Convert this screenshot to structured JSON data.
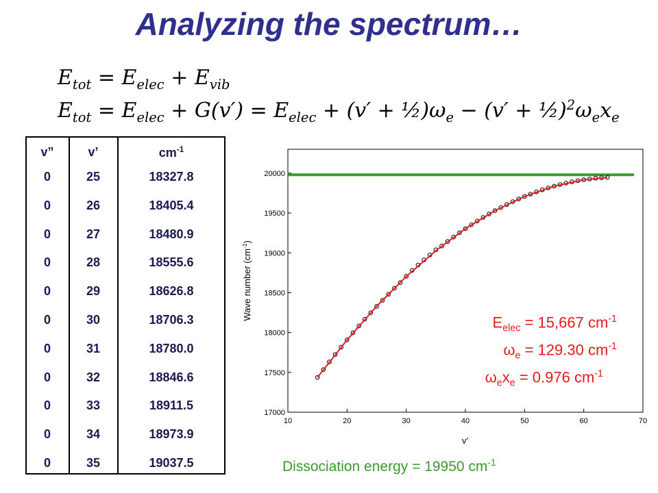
{
  "title": "Analyzing the spectrum…",
  "equations": [
    [
      "E",
      {
        "sub": "tot"
      },
      " = E",
      {
        "sub": "elec"
      },
      " + E",
      {
        "sub": "vib"
      }
    ],
    [
      "E",
      {
        "sub": "tot"
      },
      " = E",
      {
        "sub": "elec"
      },
      " + G(v′) = E",
      {
        "sub": "elec"
      },
      " + (v′ + ½)ω",
      {
        "sub": "e"
      },
      " − (v′ + ½)",
      {
        "sup": "2"
      },
      "ω",
      {
        "sub": "e"
      },
      "x",
      {
        "sub": "e"
      }
    ]
  ],
  "table": {
    "headers": [
      [
        "v”"
      ],
      [
        "v’"
      ],
      [
        "cm",
        {
          "sup": "-1"
        }
      ]
    ],
    "rows": [
      [
        0,
        25,
        "18327.8"
      ],
      [
        0,
        26,
        "18405.4"
      ],
      [
        0,
        27,
        "18480.9"
      ],
      [
        0,
        28,
        "18555.6"
      ],
      [
        0,
        29,
        "18626.8"
      ],
      [
        0,
        30,
        "18706.3"
      ],
      [
        0,
        31,
        "18780.0"
      ],
      [
        0,
        32,
        "18846.6"
      ],
      [
        0,
        33,
        "18911.5"
      ],
      [
        0,
        34,
        "18973.9"
      ],
      [
        0,
        35,
        "19037.5"
      ]
    ]
  },
  "chart_data": {
    "type": "scatter",
    "x_label": "v'",
    "y_label": [
      "Wave number (cm",
      {
        "sup": "-1"
      },
      ")"
    ],
    "xlim": [
      10,
      70
    ],
    "xticks": [
      10,
      20,
      30,
      40,
      50,
      60,
      70
    ],
    "ylim": [
      17000,
      20300
    ],
    "yticks": [
      17000,
      17500,
      18000,
      18500,
      19000,
      19500,
      20000
    ],
    "series": [
      {
        "type": "scatter",
        "color": "#000000",
        "x": [
          15,
          16,
          17,
          18,
          19,
          20,
          21,
          22,
          23,
          24,
          25,
          26,
          27,
          28,
          29,
          30,
          31,
          32,
          33,
          34,
          35,
          36,
          37,
          38,
          39,
          40,
          41,
          42,
          43,
          44,
          45,
          46,
          47,
          48,
          49,
          50,
          51,
          52,
          53,
          54,
          55,
          56,
          57,
          58,
          59,
          60,
          61,
          62,
          63,
          64
        ],
        "values": [
          17437,
          17535,
          17631,
          17725,
          17817,
          17907,
          17996,
          18082,
          18167,
          18249,
          18328,
          18405,
          18481,
          18556,
          18627,
          18706,
          18780,
          18847,
          18912,
          18974,
          19038,
          19086,
          19143,
          19198,
          19252,
          19303,
          19352,
          19399,
          19445,
          19488,
          19530,
          19569,
          19607,
          19642,
          19676,
          19708,
          19737,
          19765,
          19791,
          19815,
          19837,
          19857,
          19875,
          19891,
          19905,
          19917,
          19927,
          19936,
          19942,
          19946
        ]
      },
      {
        "type": "line",
        "color": "#e41a1c",
        "x": [
          15,
          20,
          25,
          30,
          35,
          40,
          45,
          50,
          55,
          60,
          64
        ],
        "values": [
          17437,
          17907,
          18330,
          18703,
          19027,
          19303,
          19530,
          19708,
          19837,
          19917,
          19946
        ]
      }
    ],
    "reference_line": {
      "value": 19980,
      "x": [
        10,
        68.5
      ],
      "color": "#3a9a2e"
    },
    "annotations": [
      [
        "E",
        {
          "sub": "elec"
        },
        " = 15,667 cm",
        {
          "sup": "-1"
        }
      ],
      [
        "ω",
        {
          "sub": "e"
        },
        " = 129.30 cm",
        {
          "sup": "-1"
        }
      ],
      [
        "ω",
        {
          "sub": "e"
        },
        "x",
        {
          "sub": "e"
        },
        " = 0.976 cm",
        {
          "sup": "-1"
        }
      ]
    ],
    "footnote": [
      "Dissociation energy = 19950 cm",
      {
        "sup": "-1"
      }
    ]
  }
}
